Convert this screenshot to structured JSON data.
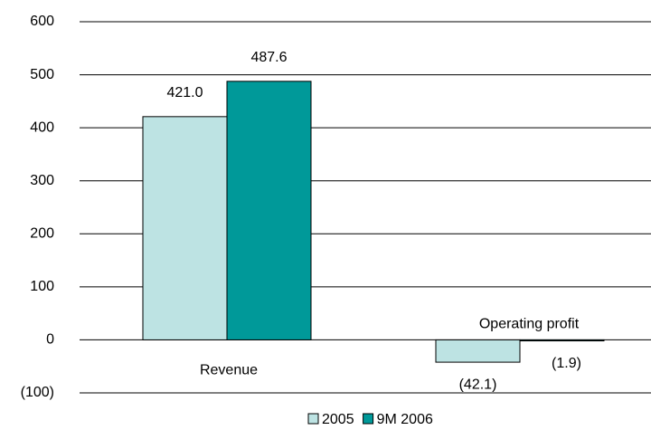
{
  "chart_data": {
    "type": "bar",
    "categories": [
      "Revenue",
      "Operating profit"
    ],
    "series": [
      {
        "name": "2005",
        "color": "#bde3e3",
        "values": [
          421.0,
          -42.1
        ],
        "value_labels": [
          "421.0",
          "(42.1)"
        ]
      },
      {
        "name": "9M 2006",
        "color": "#009999",
        "values": [
          487.6,
          -1.9
        ],
        "value_labels": [
          "487.6",
          "(1.9)"
        ]
      }
    ],
    "ylim": [
      -100,
      600
    ],
    "yticks": [
      {
        "value": -100,
        "label": "(100)"
      },
      0,
      100,
      200,
      300,
      400,
      500,
      600
    ],
    "grid": true,
    "legend": "bottom"
  }
}
